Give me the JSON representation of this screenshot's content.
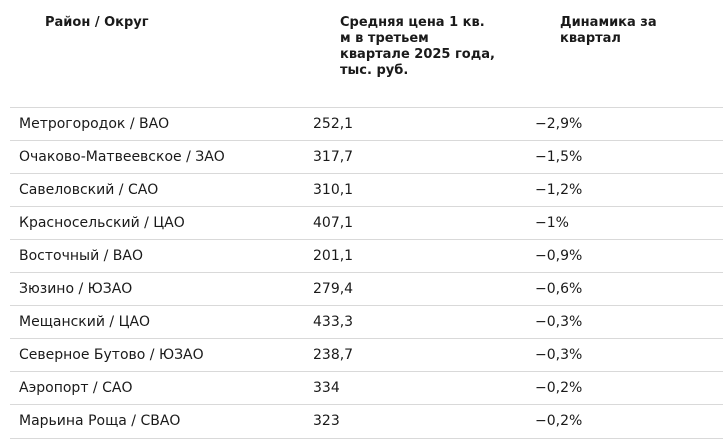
{
  "table": {
    "header": [
      "Район / Округ",
      "Средняя цена 1 кв. м в третьем квартале 2025 года, тыс. руб.",
      "Динамика за квартал"
    ],
    "rows": [
      [
        "Метрогородок / ВАО",
        "252,1",
        "−2,9%"
      ],
      [
        "Очаково-Матвеевское / ЗАО",
        "317,7",
        "−1,5%"
      ],
      [
        "Савеловский / САО",
        "310,1",
        "−1,2%"
      ],
      [
        "Красносельский / ЦАО",
        "407,1",
        "−1%"
      ],
      [
        "Восточный / ВАО",
        "201,1",
        "−0,9%"
      ],
      [
        "Зюзино / ЮЗАО",
        "279,4",
        "−0,6%"
      ],
      [
        "Мещанский / ЦАО",
        "433,3",
        "−0,3%"
      ],
      [
        "Северное Бутово / ЮЗАО",
        "238,7",
        "−0,3%"
      ],
      [
        "Аэропорт / САО",
        "334",
        "−0,2%"
      ],
      [
        "Марьина Роща / СВАО",
        "323",
        "−0,2%"
      ]
    ]
  }
}
